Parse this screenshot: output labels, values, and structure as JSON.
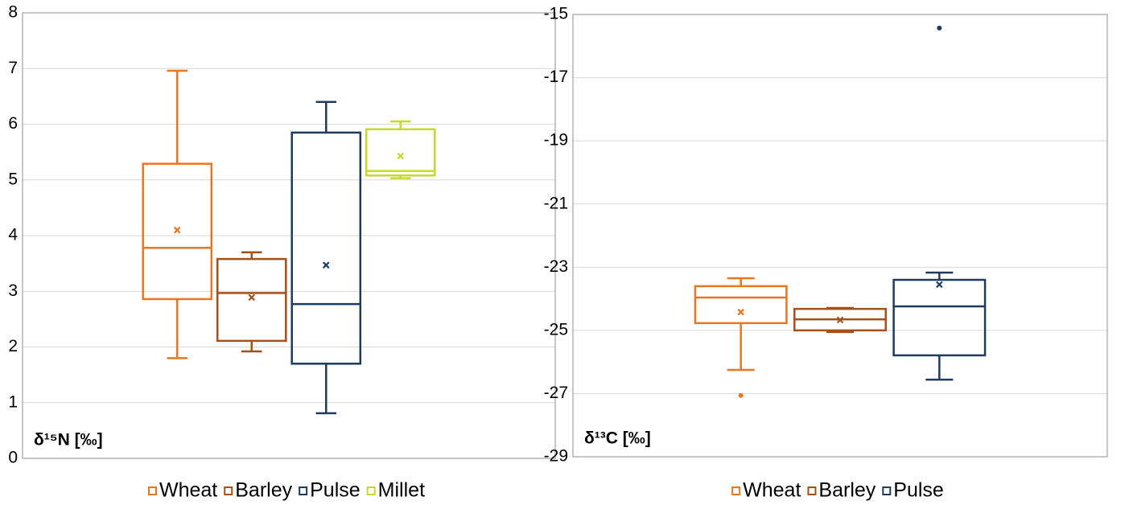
{
  "chart_data": [
    {
      "type": "box",
      "axis_label": "δ¹⁵N [‰]",
      "ylim": [
        0,
        8
      ],
      "yticks": [
        0,
        1,
        2,
        3,
        4,
        5,
        6,
        7,
        8
      ],
      "grid": true,
      "series": [
        {
          "name": "Wheat",
          "color": "#e87722",
          "values": {
            "min": 1.8,
            "q1": 2.86,
            "median": 3.78,
            "q3": 5.29,
            "max": 6.96,
            "mean": 4.1,
            "outliers": []
          }
        },
        {
          "name": "Barley",
          "color": "#a0521a",
          "values": {
            "min": 1.92,
            "q1": 2.11,
            "median": 2.97,
            "q3": 3.58,
            "max": 3.7,
            "mean": 2.89,
            "outliers": []
          }
        },
        {
          "name": "Pulse",
          "color": "#1f3a5f",
          "values": {
            "min": 0.81,
            "q1": 1.7,
            "median": 2.77,
            "q3": 5.85,
            "max": 6.4,
            "mean": 3.47,
            "outliers": []
          }
        },
        {
          "name": "Millet",
          "color": "#c8d92b",
          "values": {
            "min": 5.03,
            "q1": 5.08,
            "median": 5.16,
            "q3": 5.91,
            "max": 6.05,
            "mean": 5.43,
            "outliers": []
          }
        }
      ]
    },
    {
      "type": "box",
      "axis_label": "δ¹³C [‰]",
      "ylim": [
        -29,
        -15
      ],
      "yticks": [
        -29,
        -27,
        -25,
        -23,
        -21,
        -19,
        -17,
        -15
      ],
      "grid": true,
      "series": [
        {
          "name": "Wheat",
          "color": "#e87722",
          "values": {
            "min": -26.25,
            "q1": -24.77,
            "median": -23.96,
            "q3": -23.6,
            "max": -23.35,
            "mean": -24.42,
            "outliers": [
              -27.06
            ]
          }
        },
        {
          "name": "Barley",
          "color": "#a0521a",
          "values": {
            "min": -25.05,
            "q1": -25.0,
            "median": -24.65,
            "q3": -24.32,
            "max": -24.29,
            "mean": -24.67,
            "outliers": []
          }
        },
        {
          "name": "Pulse",
          "color": "#1f3a5f",
          "values": {
            "min": -26.56,
            "q1": -25.79,
            "median": -24.24,
            "q3": -23.4,
            "max": -23.17,
            "mean": -23.55,
            "outliers": [
              -15.43
            ]
          }
        }
      ]
    }
  ]
}
